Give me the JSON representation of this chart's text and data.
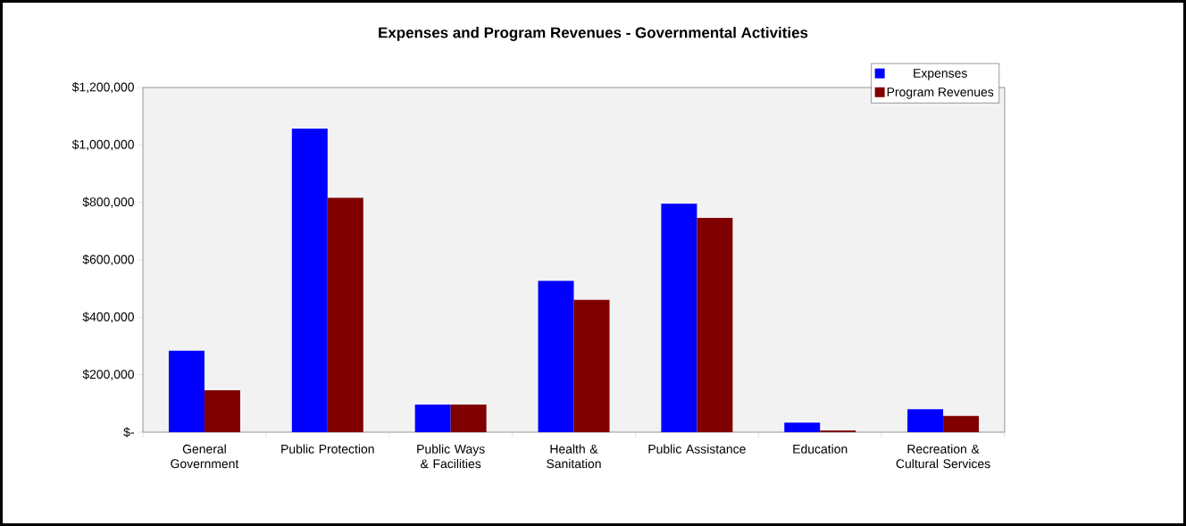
{
  "chart_data": {
    "type": "bar",
    "title": "Expenses and Program Revenues - Governmental Activities",
    "categories": [
      "General Government",
      "Public Protection",
      "Public Ways & Facilities",
      "Health & Sanitation",
      "Public Assistance",
      "Education",
      "Recreation & Cultural Services"
    ],
    "series": [
      {
        "name": "Expenses",
        "color": "#0000ff",
        "values": [
          284000,
          1057000,
          96000,
          527000,
          796000,
          33000,
          80000
        ]
      },
      {
        "name": "Program Revenues",
        "color": "#800000",
        "values": [
          146000,
          816000,
          96000,
          461000,
          746000,
          6000,
          57000
        ]
      }
    ],
    "ylim": [
      0,
      1200000
    ],
    "yticks": [
      {
        "value": 0,
        "label": "$-"
      },
      {
        "value": 200000,
        "label": "$200,000"
      },
      {
        "value": 400000,
        "label": "$400,000"
      },
      {
        "value": 600000,
        "label": "$600,000"
      },
      {
        "value": 800000,
        "label": "$800,000"
      },
      {
        "value": 1000000,
        "label": "$1,000,000"
      },
      {
        "value": 1200000,
        "label": "$1,200,000"
      }
    ],
    "legend": "top right",
    "grid": false
  }
}
